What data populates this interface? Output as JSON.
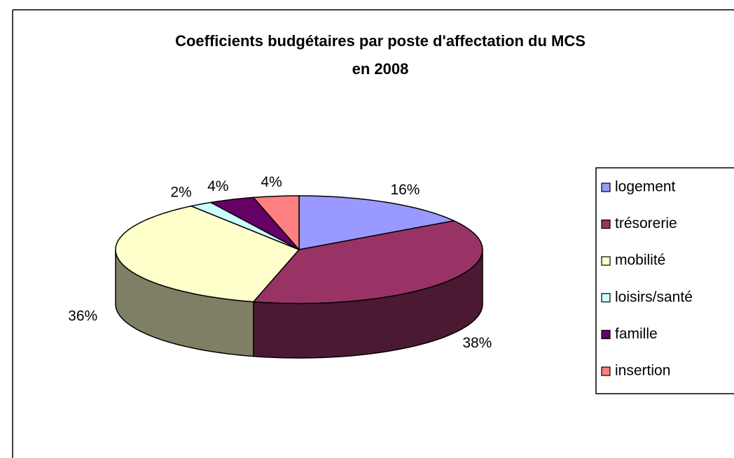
{
  "chart_data": {
    "type": "pie",
    "view": "3d",
    "title": [
      "Coefficients budgétaires par poste d'affectation du MCS",
      "en 2008"
    ],
    "categories": [
      "logement",
      "trésorerie",
      "mobilité",
      "loisirs/santé",
      "famille",
      "insertion"
    ],
    "values": [
      16,
      38,
      36,
      2,
      4,
      4
    ],
    "value_labels": [
      "16%",
      "38%",
      "36%",
      "2%",
      "4%",
      "4%"
    ],
    "colors": [
      "#9999ff",
      "#993366",
      "#ffffcc",
      "#ccffff",
      "#660066",
      "#ff8080"
    ],
    "legend": "right"
  }
}
